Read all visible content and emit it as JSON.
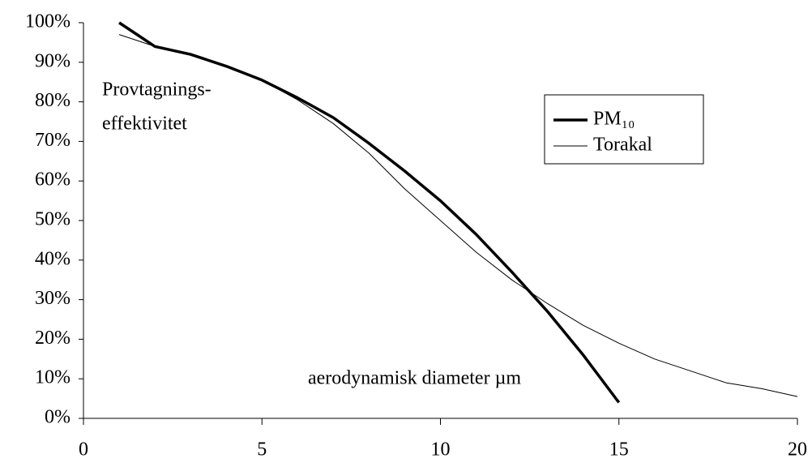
{
  "chart_data": {
    "type": "line",
    "xlabel": "aerodynamisk diameter µm",
    "annotations": [
      "Provtagnings-",
      "effektivitet"
    ],
    "xlim": [
      0,
      20
    ],
    "xticks": [
      0,
      5,
      10,
      15,
      20
    ],
    "ylim": [
      0,
      100
    ],
    "yticks": [
      {
        "value": 0,
        "label": "0%"
      },
      {
        "value": 10,
        "label": "10%"
      },
      {
        "value": 20,
        "label": "20%"
      },
      {
        "value": 30,
        "label": "30%"
      },
      {
        "value": 40,
        "label": "40%"
      },
      {
        "value": 50,
        "label": "50%"
      },
      {
        "value": 60,
        "label": "60%"
      },
      {
        "value": 70,
        "label": "70%"
      },
      {
        "value": 80,
        "label": "80%"
      },
      {
        "value": 90,
        "label": "90%"
      },
      {
        "value": 100,
        "label": "100%"
      }
    ],
    "grid": false,
    "series": [
      {
        "name": "PM₁₀",
        "color": "#000000",
        "width": 3.5,
        "x": [
          1,
          1.5,
          2,
          2.5,
          3,
          3.5,
          4,
          5,
          6,
          7,
          8,
          9,
          10,
          11,
          12,
          13,
          14,
          15
        ],
        "values": [
          100,
          97,
          94,
          93,
          92,
          90.5,
          89,
          85.5,
          81,
          76,
          69.5,
          62.5,
          55,
          46.5,
          37,
          27,
          16,
          4
        ]
      },
      {
        "name": "Torakal",
        "color": "#000000",
        "width": 1,
        "x": [
          1,
          2,
          3,
          4,
          5,
          6,
          7,
          8,
          9,
          10,
          11,
          12,
          13,
          14,
          15,
          16,
          17,
          18,
          19,
          20
        ],
        "values": [
          97,
          94,
          92,
          89,
          85.5,
          80.5,
          74.5,
          67,
          58,
          50,
          42,
          35,
          29,
          23.5,
          19,
          15,
          12,
          9,
          7.5,
          5.5
        ]
      }
    ]
  }
}
